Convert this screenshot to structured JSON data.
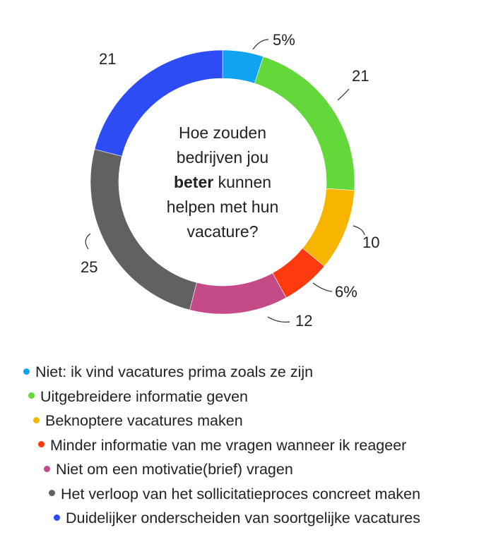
{
  "chart_data": {
    "type": "pie",
    "variant": "donut",
    "center_title": {
      "lines": [
        [
          {
            "text": "Hoe zouden",
            "bold": false
          }
        ],
        [
          {
            "text": "bedrijven jou",
            "bold": false
          }
        ],
        [
          {
            "text": "beter",
            "bold": true
          },
          {
            "text": " kunnen",
            "bold": false
          }
        ],
        [
          {
            "text": "helpen met hun",
            "bold": false
          }
        ],
        [
          {
            "text": "vacature?",
            "bold": false
          }
        ]
      ]
    },
    "slices": [
      {
        "name": "Niet: ik vind vacatures prima zoals ze zijn",
        "value": 5,
        "label": "5%",
        "color": "#0fa3f0"
      },
      {
        "name": "Uitgebreidere informatie geven",
        "value": 21,
        "label": "21",
        "color": "#64d73a"
      },
      {
        "name": "Beknoptere vacatures maken",
        "value": 10,
        "label": "10",
        "color": "#f7b500"
      },
      {
        "name": "Minder informatie van me vragen wanneer ik reageer",
        "value": 6,
        "label": "6%",
        "color": "#ff3a0f"
      },
      {
        "name": "Niet om een motivatie(brief) vragen",
        "value": 12,
        "label": "12",
        "color": "#c44a88"
      },
      {
        "name": "Het verloop van het sollicitatieproces concreet maken",
        "value": 25,
        "label": "25",
        "color": "#616161"
      },
      {
        "name": "Duidelijker onderscheiden van soortgelijke vacatures",
        "value": 21,
        "label": "21",
        "color": "#2d4cf5"
      }
    ],
    "legend_placement": "bottom"
  }
}
